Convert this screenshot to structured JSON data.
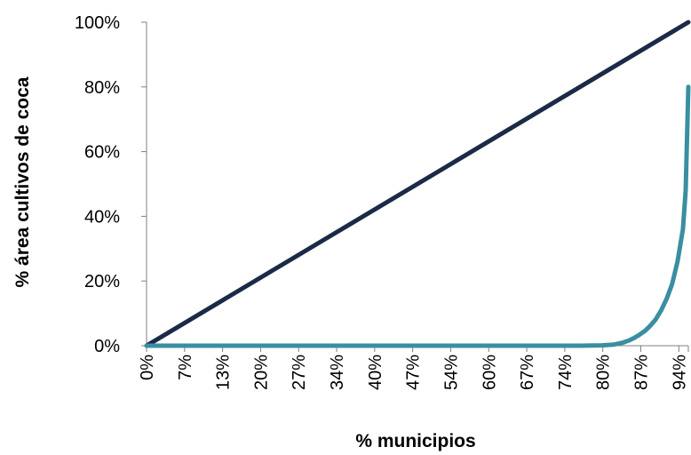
{
  "chart_data": {
    "type": "line",
    "title": "",
    "xlabel": "% municipios",
    "ylabel": "% área cultivos de coca",
    "x_tick_labels": [
      "0%",
      "7%",
      "13%",
      "20%",
      "27%",
      "34%",
      "40%",
      "47%",
      "54%",
      "60%",
      "67%",
      "74%",
      "80%",
      "87%",
      "94%"
    ],
    "y_tick_labels": [
      "0%",
      "20%",
      "40%",
      "60%",
      "80%",
      "100%"
    ],
    "xlim": [
      0,
      100
    ],
    "ylim": [
      0,
      100
    ],
    "grid": false,
    "legend": "none",
    "series": [
      {
        "color": "#1b2a47",
        "x": [
          0,
          100
        ],
        "y": [
          0,
          100
        ]
      },
      {
        "color": "#3a8ea1",
        "x": [
          0,
          80,
          84,
          86,
          87,
          88,
          89,
          90,
          91,
          92,
          93,
          94,
          95,
          96,
          97,
          98,
          99,
          99.5,
          100
        ],
        "y": [
          0,
          0,
          0.1,
          0.3,
          0.6,
          1.0,
          1.6,
          2.4,
          3.4,
          4.6,
          6.2,
          8.2,
          11,
          14.5,
          19,
          26,
          36,
          48,
          80
        ]
      }
    ]
  }
}
